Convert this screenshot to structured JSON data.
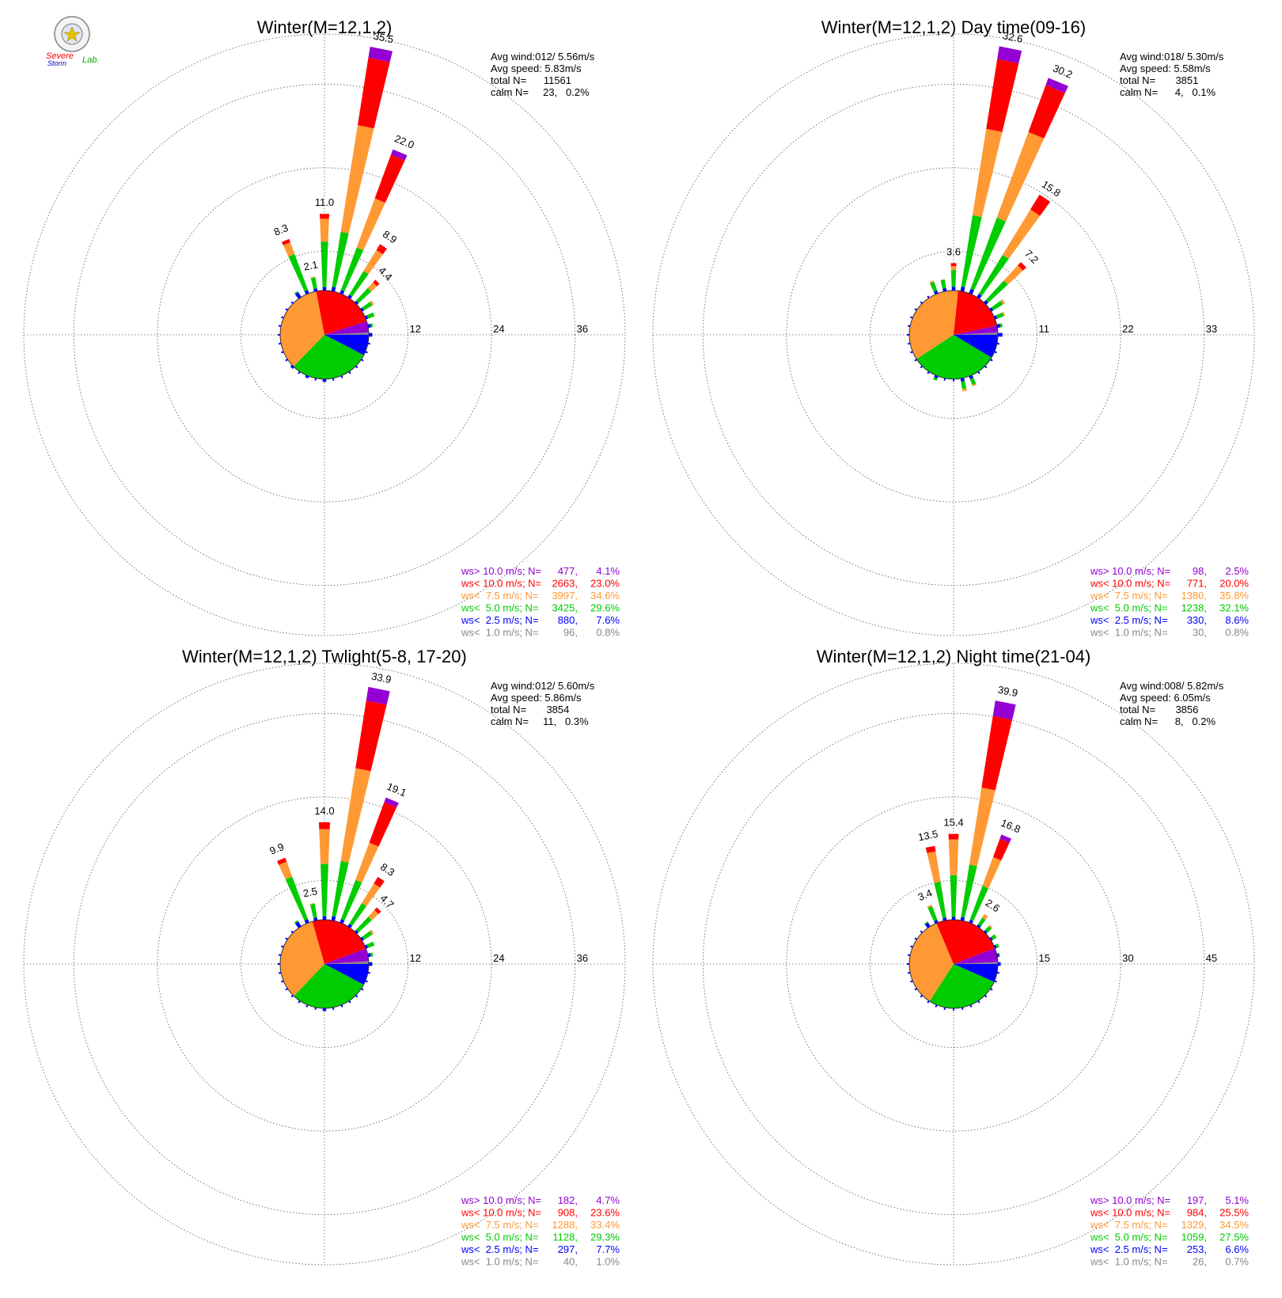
{
  "logo": {
    "text_top": "Severe",
    "text_bottom": "Storm",
    "text_lab": "Lab."
  },
  "colors": {
    "purple": "#9400d3",
    "red": "#ff0000",
    "orange": "#ff9933",
    "green": "#00cc00",
    "blue": "#0000ff",
    "gray": "#888888"
  },
  "chart_data": [
    {
      "type": "windrose",
      "title": "Winter(M=12,1,2)",
      "info": [
        "Avg wind:012/ 5.56m/s",
        "Avg speed: 5.83m/s",
        "total N=      11561",
        "calm N=     23,   0.2%"
      ],
      "ring_ticks": [
        "12",
        "24",
        "36"
      ],
      "rmax": 36,
      "pie_sector_percents": [
        7.6,
        29.6,
        34.6,
        23.0,
        4.1,
        0.8
      ],
      "peak_labels": [
        {
          "dir": 348.75,
          "value": "2.1"
        },
        {
          "dir": 337.5,
          "value": "8.3"
        },
        {
          "dir": 0,
          "value": "11.0"
        },
        {
          "dir": 11.25,
          "value": "35.5"
        },
        {
          "dir": 22.5,
          "value": "22.0"
        },
        {
          "dir": 33.75,
          "value": "8.9"
        },
        {
          "dir": 45,
          "value": "4.4"
        }
      ],
      "bars": [
        {
          "dir": 326.25,
          "segments": [
            0.8,
            0.2
          ]
        },
        {
          "dir": 337.5,
          "segments": [
            0.5,
            5.5,
            1.8,
            0.5
          ]
        },
        {
          "dir": 348.75,
          "segments": [
            0.4,
            1.6,
            0.1
          ]
        },
        {
          "dir": 0,
          "segments": [
            0.5,
            6.5,
            3.3,
            0.7
          ]
        },
        {
          "dir": 11.25,
          "segments": [
            0.6,
            8.0,
            15.5,
            9.8,
            1.6
          ]
        },
        {
          "dir": 22.5,
          "segments": [
            0.5,
            6.5,
            7.5,
            6.7,
            0.8
          ]
        },
        {
          "dir": 33.75,
          "segments": [
            0.4,
            4.0,
            3.5,
            1.0
          ]
        },
        {
          "dir": 45,
          "segments": [
            0.3,
            2.5,
            1.1,
            0.5
          ]
        },
        {
          "dir": 56.25,
          "segments": [
            0.3,
            1.4,
            0.3
          ]
        },
        {
          "dir": 67.5,
          "segments": [
            0.3,
            1.0
          ]
        },
        {
          "dir": 78.75,
          "segments": [
            0.4,
            0.3
          ]
        },
        {
          "dir": 90,
          "segments": [
            0.5
          ]
        },
        {
          "dir": 180,
          "segments": [
            0.4
          ]
        },
        {
          "dir": 202.5,
          "segments": [
            0.3
          ]
        },
        {
          "dir": 225,
          "segments": [
            0.3
          ]
        }
      ],
      "legend": [
        {
          "label": "ws> 10.0 m/s; N=",
          "n": "477",
          "pct": "4.1%",
          "color": "#9400d3"
        },
        {
          "label": "ws< 10.0 m/s; N=",
          "n": "2663",
          "pct": "23.0%",
          "color": "#ff0000"
        },
        {
          "label": "ws<  7.5 m/s; N=",
          "n": "3997",
          "pct": "34.6%",
          "color": "#ff9933"
        },
        {
          "label": "ws<  5.0 m/s; N=",
          "n": "3425",
          "pct": "29.6%",
          "color": "#00cc00"
        },
        {
          "label": "ws<  2.5 m/s; N=",
          "n": "880",
          "pct": "7.6%",
          "color": "#0000ff"
        },
        {
          "label": "ws<  1.0 m/s; N=",
          "n": "96",
          "pct": "0.8%",
          "color": "#888888"
        }
      ]
    },
    {
      "type": "windrose",
      "title": "Winter(M=12,1,2) Day time(09-16)",
      "info": [
        "Avg wind:018/ 5.30m/s",
        "Avg speed: 5.58m/s",
        "total N=       3851",
        "calm N=      4,   0.1%"
      ],
      "ring_ticks": [
        "11",
        "22",
        "33"
      ],
      "rmax": 33,
      "pie_sector_percents": [
        8.6,
        32.1,
        35.8,
        20.0,
        2.5,
        0.8
      ],
      "peak_labels": [
        {
          "dir": 0,
          "value": "3.6"
        },
        {
          "dir": 11.25,
          "value": "32.6"
        },
        {
          "dir": 22.5,
          "value": "30.2"
        },
        {
          "dir": 33.75,
          "value": "15.8"
        },
        {
          "dir": 45,
          "value": "7.2"
        }
      ],
      "bars": [
        {
          "dir": 337.5,
          "segments": [
            0.4,
            1.2,
            0.2
          ]
        },
        {
          "dir": 348.75,
          "segments": [
            0.4,
            1.1,
            0.1
          ]
        },
        {
          "dir": 0,
          "segments": [
            0.5,
            2.2,
            0.5,
            0.4
          ]
        },
        {
          "dir": 11.25,
          "segments": [
            0.6,
            9.5,
            11.5,
            9.3,
            1.7
          ]
        },
        {
          "dir": 22.5,
          "segments": [
            0.6,
            10.0,
            12.0,
            6.6,
            1.0
          ]
        },
        {
          "dir": 33.75,
          "segments": [
            0.5,
            6.0,
            7.0,
            2.3
          ]
        },
        {
          "dir": 45,
          "segments": [
            0.4,
            3.5,
            2.7,
            0.6
          ]
        },
        {
          "dir": 56.25,
          "segments": [
            0.3,
            1.5,
            0.3
          ]
        },
        {
          "dir": 67.5,
          "segments": [
            0.3,
            0.9,
            0.2
          ]
        },
        {
          "dir": 78.75,
          "segments": [
            0.4,
            0.3
          ]
        },
        {
          "dir": 90,
          "segments": [
            0.6
          ]
        },
        {
          "dir": 157.5,
          "segments": [
            0.4,
            0.8,
            0.2
          ]
        },
        {
          "dir": 168.75,
          "segments": [
            0.4,
            1.0,
            0.3
          ]
        },
        {
          "dir": 202.5,
          "segments": [
            0.3,
            0.3
          ]
        }
      ],
      "legend": [
        {
          "label": "ws> 10.0 m/s; N=",
          "n": "98",
          "pct": "2.5%",
          "color": "#9400d3"
        },
        {
          "label": "ws< 10.0 m/s; N=",
          "n": "771",
          "pct": "20.0%",
          "color": "#ff0000"
        },
        {
          "label": "ws<  7.5 m/s; N=",
          "n": "1380",
          "pct": "35.8%",
          "color": "#ff9933"
        },
        {
          "label": "ws<  5.0 m/s; N=",
          "n": "1238",
          "pct": "32.1%",
          "color": "#00cc00"
        },
        {
          "label": "ws<  2.5 m/s; N=",
          "n": "330",
          "pct": "8.6%",
          "color": "#0000ff"
        },
        {
          "label": "ws<  1.0 m/s; N=",
          "n": "30",
          "pct": "0.8%",
          "color": "#888888"
        }
      ]
    },
    {
      "type": "windrose",
      "title": "Winter(M=12,1,2) Twlight(5-8, 17-20)",
      "info": [
        "Avg wind:012/ 5.60m/s",
        "Avg speed: 5.86m/s",
        "total N=       3854",
        "calm N=     11,   0.3%"
      ],
      "ring_ticks": [
        "12",
        "24",
        "36"
      ],
      "rmax": 36,
      "pie_sector_percents": [
        7.7,
        29.3,
        33.4,
        23.6,
        4.7,
        1.0
      ],
      "peak_labels": [
        {
          "dir": 348.75,
          "value": "2.5"
        },
        {
          "dir": 337.5,
          "value": "9.9"
        },
        {
          "dir": 0,
          "value": "14.0"
        },
        {
          "dir": 11.25,
          "value": "33.9"
        },
        {
          "dir": 22.5,
          "value": "19.1"
        },
        {
          "dir": 33.75,
          "value": "8.3"
        },
        {
          "dir": 45,
          "value": "4.7"
        }
      ],
      "bars": [
        {
          "dir": 326.25,
          "segments": [
            0.8,
            0.2
          ]
        },
        {
          "dir": 337.5,
          "segments": [
            0.5,
            6.5,
            2.3,
            0.6
          ]
        },
        {
          "dir": 348.75,
          "segments": [
            0.4,
            2.0,
            0.1
          ]
        },
        {
          "dir": 0,
          "segments": [
            0.5,
            7.5,
            5.0,
            1.0
          ]
        },
        {
          "dir": 11.25,
          "segments": [
            0.6,
            8.0,
            13.5,
            9.8,
            2.0
          ]
        },
        {
          "dir": 22.5,
          "segments": [
            0.5,
            6.0,
            5.7,
            6.2,
            0.7
          ]
        },
        {
          "dir": 33.75,
          "segments": [
            0.4,
            3.5,
            3.3,
            1.1
          ]
        },
        {
          "dir": 45,
          "segments": [
            0.3,
            2.6,
            1.3,
            0.5
          ]
        },
        {
          "dir": 56.25,
          "segments": [
            0.3,
            1.4,
            0.3
          ]
        },
        {
          "dir": 67.5,
          "segments": [
            0.3,
            1.0
          ]
        },
        {
          "dir": 78.75,
          "segments": [
            0.4,
            0.3
          ]
        },
        {
          "dir": 90,
          "segments": [
            0.5
          ]
        },
        {
          "dir": 180,
          "segments": [
            0.4
          ]
        }
      ],
      "legend": [
        {
          "label": "ws> 10.0 m/s; N=",
          "n": "182",
          "pct": "4.7%",
          "color": "#9400d3"
        },
        {
          "label": "ws< 10.0 m/s; N=",
          "n": "908",
          "pct": "23.6%",
          "color": "#ff0000"
        },
        {
          "label": "ws<  7.5 m/s; N=",
          "n": "1288",
          "pct": "33.4%",
          "color": "#ff9933"
        },
        {
          "label": "ws<  5.0 m/s; N=",
          "n": "1128",
          "pct": "29.3%",
          "color": "#00cc00"
        },
        {
          "label": "ws<  2.5 m/s; N=",
          "n": "297",
          "pct": "7.7%",
          "color": "#0000ff"
        },
        {
          "label": "ws<  1.0 m/s; N=",
          "n": "40",
          "pct": "1.0%",
          "color": "#888888"
        }
      ]
    },
    {
      "type": "windrose",
      "title": "Winter(M=12,1,2) Night time(21-04)",
      "info": [
        "Avg wind:008/ 5.82m/s",
        "Avg speed: 6.05m/s",
        "total N=       3856",
        "calm N=      8,   0.2%"
      ],
      "ring_ticks": [
        "15",
        "30",
        "45"
      ],
      "rmax": 45,
      "pie_sector_percents": [
        6.6,
        27.5,
        34.5,
        25.5,
        5.1,
        0.7
      ],
      "peak_labels": [
        {
          "dir": 337.5,
          "value": "3.4"
        },
        {
          "dir": 348.75,
          "value": "13.5"
        },
        {
          "dir": 0,
          "value": "15.4"
        },
        {
          "dir": 11.25,
          "value": "39.9"
        },
        {
          "dir": 22.5,
          "value": "16.8"
        },
        {
          "dir": 33.75,
          "value": "2.6"
        }
      ],
      "bars": [
        {
          "dir": 326.25,
          "segments": [
            0.8,
            0.2
          ]
        },
        {
          "dir": 337.5,
          "segments": [
            0.5,
            2.6,
            0.3
          ]
        },
        {
          "dir": 348.75,
          "segments": [
            0.5,
            6.5,
            5.5,
            1.0
          ]
        },
        {
          "dir": 0,
          "segments": [
            0.5,
            7.5,
            6.4,
            1.0
          ]
        },
        {
          "dir": 11.25,
          "segments": [
            0.6,
            9.5,
            14.0,
            13.0,
            2.8
          ]
        },
        {
          "dir": 22.5,
          "segments": [
            0.5,
            6.5,
            5.5,
            3.5,
            0.8
          ]
        },
        {
          "dir": 33.75,
          "segments": [
            0.4,
            1.4,
            0.8
          ]
        },
        {
          "dir": 45,
          "segments": [
            0.3,
            1.0,
            0.3
          ]
        },
        {
          "dir": 56.25,
          "segments": [
            0.3,
            0.8
          ]
        },
        {
          "dir": 67.5,
          "segments": [
            0.3,
            0.5
          ]
        },
        {
          "dir": 78.75,
          "segments": [
            0.3,
            0.2
          ]
        },
        {
          "dir": 90,
          "segments": [
            0.5
          ]
        }
      ],
      "legend": [
        {
          "label": "ws> 10.0 m/s; N=",
          "n": "197",
          "pct": "5.1%",
          "color": "#9400d3"
        },
        {
          "label": "ws< 10.0 m/s; N=",
          "n": "984",
          "pct": "25.5%",
          "color": "#ff0000"
        },
        {
          "label": "ws<  7.5 m/s; N=",
          "n": "1329",
          "pct": "34.5%",
          "color": "#ff9933"
        },
        {
          "label": "ws<  5.0 m/s; N=",
          "n": "1059",
          "pct": "27.5%",
          "color": "#00cc00"
        },
        {
          "label": "ws<  2.5 m/s; N=",
          "n": "253",
          "pct": "6.6%",
          "color": "#0000ff"
        },
        {
          "label": "ws<  1.0 m/s; N=",
          "n": "26",
          "pct": "0.7%",
          "color": "#888888"
        }
      ]
    }
  ]
}
